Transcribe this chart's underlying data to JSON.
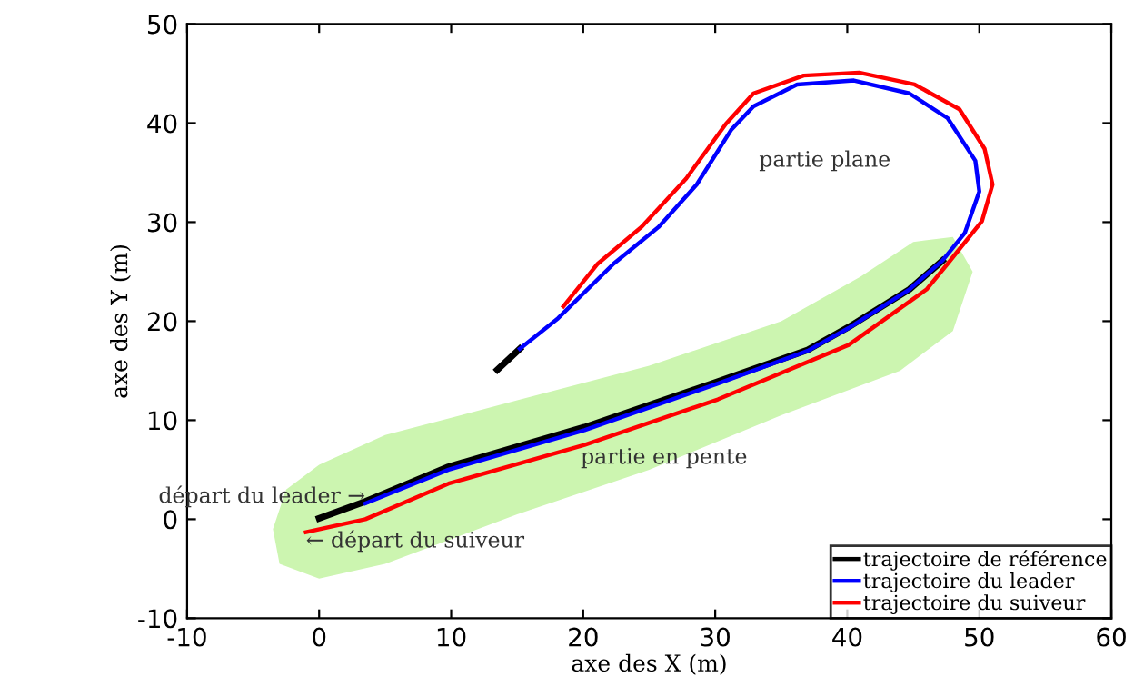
{
  "chart_data": {
    "type": "line",
    "xlabel": "axe des X (m)",
    "ylabel": "axe des Y (m)",
    "xlim": [
      -10,
      60
    ],
    "ylim": [
      -10,
      50
    ],
    "xticks": [
      -10,
      0,
      10,
      20,
      30,
      40,
      50,
      60
    ],
    "yticks": [
      -10,
      0,
      10,
      20,
      30,
      40,
      50
    ],
    "grid": false,
    "legend": "bottom right",
    "marker": "none",
    "line_style": "solid",
    "series": [
      {
        "name": "trajectoire de référence",
        "color": "#000000",
        "x": [
          0,
          3.5,
          9.8,
          20.1,
          30.2,
          37,
          40.1,
          44.7,
          47.2,
          null,
          15.2,
          13.5
        ],
        "values": [
          0.1,
          1.8,
          5.3,
          9.3,
          13.9,
          17.1,
          19.4,
          23.2,
          26.1,
          null,
          17.2,
          15.1
        ]
      },
      {
        "name": "trajectoire du leader",
        "color": "#0000ff",
        "x": [
          3.5,
          9.8,
          20.1,
          30.2,
          37,
          40.1,
          44.7,
          47.2,
          48.9,
          50.0,
          49.7,
          47.6,
          44.7,
          40.5,
          36.2,
          32.9,
          31.2,
          28.6,
          25.7,
          22.3,
          18.1,
          15.2
        ],
        "values": [
          1.6,
          5.0,
          9.0,
          13.7,
          17,
          19.3,
          23.2,
          26.1,
          28.9,
          33.1,
          36.2,
          40.5,
          43.0,
          44.3,
          43.9,
          41.7,
          39.3,
          33.8,
          29.5,
          25.8,
          20.3,
          17.2
        ]
      },
      {
        "name": "trajectoire du suiveur",
        "color": "#ff0000",
        "x": [
          -1.0,
          3.5,
          9.8,
          20.1,
          30.2,
          40.1,
          46,
          47.6,
          50.2,
          51.0,
          50.4,
          48.5,
          45.1,
          40.9,
          36.7,
          32.9,
          30.8,
          27.8,
          24.4,
          21.1,
          18.5
        ],
        "values": [
          -1.3,
          0,
          3.6,
          7.5,
          12.1,
          17.6,
          23.2,
          25.8,
          30.1,
          33.8,
          37.4,
          41.4,
          43.9,
          45.1,
          44.8,
          43.0,
          39.9,
          34.4,
          29.5,
          25.8,
          21.5
        ]
      }
    ],
    "annotations": [
      "partie plane",
      "partie en pente",
      {
        "text": "départ du leader →",
        "x": 3.5,
        "y": 2.3
      },
      {
        "text": "← départ du suiveur",
        "x": -1.0,
        "y": -2.2
      }
    ]
  }
}
